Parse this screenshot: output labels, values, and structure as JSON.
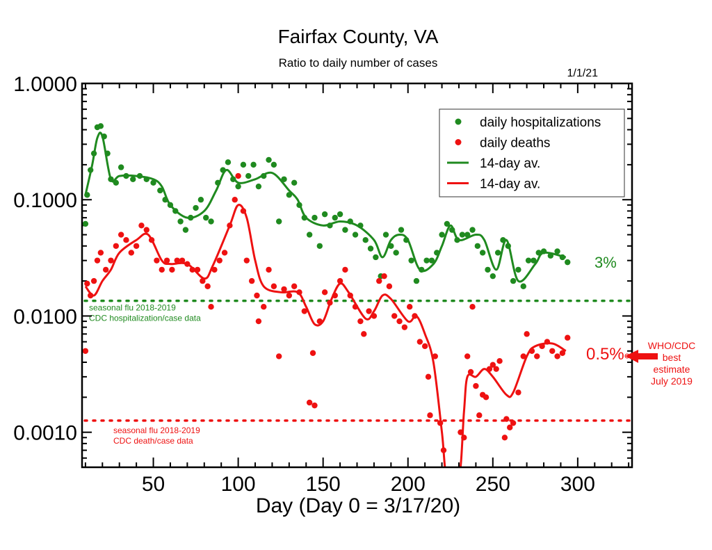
{
  "chart_data": {
    "type": "scatter",
    "title": "Fairfax County, VA",
    "subtitle": "Ratio to daily number of cases",
    "date_label": "1/1/21",
    "xlabel": "Day (Day 0 = 3/17/20)",
    "ylabel": "",
    "xlim": [
      8,
      332
    ],
    "ylim": [
      0.0005,
      1.0
    ],
    "yscale": "log",
    "xticks": [
      50,
      100,
      150,
      200,
      250,
      300
    ],
    "xtick_labels": [
      "50",
      "100",
      "150",
      "200",
      "250",
      "300"
    ],
    "yticks": [
      1.0,
      0.1,
      0.01,
      0.001
    ],
    "ytick_labels": [
      "1.0000",
      "0.1000",
      "0.0100",
      "0.0010"
    ],
    "legend_position": "top-right",
    "colors": {
      "hosp": "#1f8a1f",
      "death": "#ee1111"
    },
    "legend": [
      {
        "label": "daily hospitalizations",
        "kind": "dot",
        "series": "hosp"
      },
      {
        "label": "daily deaths",
        "kind": "dot",
        "series": "death"
      },
      {
        "label": "14-day av.",
        "kind": "line",
        "series": "hosp"
      },
      {
        "label": "14-day av.",
        "kind": "line",
        "series": "death"
      }
    ],
    "series": [
      {
        "name": "daily hospitalizations",
        "key": "hosp",
        "kind": "points",
        "points": [
          [
            10,
            0.062
          ],
          [
            11,
            0.11
          ],
          [
            13,
            0.18
          ],
          [
            15,
            0.25
          ],
          [
            17,
            0.42
          ],
          [
            19,
            0.43
          ],
          [
            21,
            0.35
          ],
          [
            23,
            0.25
          ],
          [
            25,
            0.15
          ],
          [
            28,
            0.14
          ],
          [
            31,
            0.19
          ],
          [
            34,
            0.16
          ],
          [
            38,
            0.15
          ],
          [
            42,
            0.16
          ],
          [
            46,
            0.15
          ],
          [
            50,
            0.14
          ],
          [
            54,
            0.12
          ],
          [
            57,
            0.1
          ],
          [
            60,
            0.09
          ],
          [
            63,
            0.08
          ],
          [
            66,
            0.065
          ],
          [
            69,
            0.055
          ],
          [
            72,
            0.07
          ],
          [
            75,
            0.085
          ],
          [
            78,
            0.1
          ],
          [
            81,
            0.07
          ],
          [
            84,
            0.065
          ],
          [
            88,
            0.14
          ],
          [
            91,
            0.18
          ],
          [
            94,
            0.21
          ],
          [
            97,
            0.15
          ],
          [
            100,
            0.13
          ],
          [
            103,
            0.2
          ],
          [
            106,
            0.16
          ],
          [
            109,
            0.2
          ],
          [
            112,
            0.13
          ],
          [
            115,
            0.16
          ],
          [
            118,
            0.22
          ],
          [
            121,
            0.2
          ],
          [
            124,
            0.065
          ],
          [
            127,
            0.15
          ],
          [
            130,
            0.11
          ],
          [
            133,
            0.14
          ],
          [
            136,
            0.09
          ],
          [
            139,
            0.07
          ],
          [
            142,
            0.05
          ],
          [
            145,
            0.07
          ],
          [
            148,
            0.04
          ],
          [
            151,
            0.075
          ],
          [
            154,
            0.06
          ],
          [
            157,
            0.07
          ],
          [
            160,
            0.075
          ],
          [
            163,
            0.055
          ],
          [
            166,
            0.065
          ],
          [
            169,
            0.05
          ],
          [
            172,
            0.06
          ],
          [
            175,
            0.045
          ],
          [
            178,
            0.038
          ],
          [
            181,
            0.032
          ],
          [
            184,
            0.022
          ],
          [
            187,
            0.05
          ],
          [
            190,
            0.04
          ],
          [
            193,
            0.035
          ],
          [
            196,
            0.055
          ],
          [
            199,
            0.045
          ],
          [
            202,
            0.03
          ],
          [
            205,
            0.02
          ],
          [
            208,
            0.025
          ],
          [
            211,
            0.03
          ],
          [
            214,
            0.03
          ],
          [
            217,
            0.035
          ],
          [
            220,
            0.05
          ],
          [
            223,
            0.062
          ],
          [
            226,
            0.055
          ],
          [
            229,
            0.045
          ],
          [
            232,
            0.05
          ],
          [
            235,
            0.05
          ],
          [
            238,
            0.055
          ],
          [
            241,
            0.04
          ],
          [
            244,
            0.035
          ],
          [
            247,
            0.025
          ],
          [
            250,
            0.022
          ],
          [
            253,
            0.035
          ],
          [
            256,
            0.045
          ],
          [
            259,
            0.04
          ],
          [
            262,
            0.02
          ],
          [
            265,
            0.025
          ],
          [
            268,
            0.018
          ],
          [
            271,
            0.03
          ],
          [
            274,
            0.03
          ],
          [
            277,
            0.035
          ],
          [
            280,
            0.036
          ],
          [
            284,
            0.033
          ],
          [
            288,
            0.036
          ],
          [
            291,
            0.032
          ],
          [
            294,
            0.029
          ]
        ]
      },
      {
        "name": "daily deaths",
        "key": "death",
        "kind": "points",
        "points": [
          [
            10,
            0.005
          ],
          [
            11,
            0.019
          ],
          [
            13,
            0.015
          ],
          [
            15,
            0.02
          ],
          [
            17,
            0.03
          ],
          [
            19,
            0.035
          ],
          [
            22,
            0.025
          ],
          [
            25,
            0.03
          ],
          [
            28,
            0.04
          ],
          [
            31,
            0.05
          ],
          [
            34,
            0.045
          ],
          [
            37,
            0.035
          ],
          [
            40,
            0.04
          ],
          [
            43,
            0.06
          ],
          [
            46,
            0.055
          ],
          [
            49,
            0.045
          ],
          [
            52,
            0.03
          ],
          [
            55,
            0.025
          ],
          [
            58,
            0.03
          ],
          [
            61,
            0.025
          ],
          [
            64,
            0.03
          ],
          [
            67,
            0.03
          ],
          [
            70,
            0.028
          ],
          [
            73,
            0.025
          ],
          [
            76,
            0.025
          ],
          [
            79,
            0.02
          ],
          [
            82,
            0.018
          ],
          [
            84,
            0.012
          ],
          [
            86,
            0.025
          ],
          [
            89,
            0.03
          ],
          [
            92,
            0.035
          ],
          [
            95,
            0.06
          ],
          [
            98,
            0.1
          ],
          [
            100,
            0.16
          ],
          [
            103,
            0.08
          ],
          [
            105,
            0.03
          ],
          [
            108,
            0.02
          ],
          [
            111,
            0.015
          ],
          [
            112,
            0.009
          ],
          [
            115,
            0.012
          ],
          [
            118,
            0.025
          ],
          [
            121,
            0.018
          ],
          [
            124,
            0.0045
          ],
          [
            127,
            0.017
          ],
          [
            130,
            0.015
          ],
          [
            133,
            0.018
          ],
          [
            136,
            0.016
          ],
          [
            139,
            0.011
          ],
          [
            142,
            0.0018
          ],
          [
            144,
            0.0048
          ],
          [
            145,
            0.0017
          ],
          [
            148,
            0.009
          ],
          [
            151,
            0.016
          ],
          [
            154,
            0.013
          ],
          [
            157,
            0.015
          ],
          [
            160,
            0.02
          ],
          [
            163,
            0.025
          ],
          [
            166,
            0.015
          ],
          [
            169,
            0.012
          ],
          [
            172,
            0.009
          ],
          [
            174,
            0.007
          ],
          [
            177,
            0.011
          ],
          [
            180,
            0.01
          ],
          [
            183,
            0.02
          ],
          [
            186,
            0.022
          ],
          [
            189,
            0.018
          ],
          [
            192,
            0.01
          ],
          [
            195,
            0.009
          ],
          [
            198,
            0.008
          ],
          [
            201,
            0.012
          ],
          [
            204,
            0.01
          ],
          [
            207,
            0.006
          ],
          [
            210,
            0.0055
          ],
          [
            212,
            0.003
          ],
          [
            213,
            0.0014
          ],
          [
            216,
            0.0045
          ],
          [
            219,
            0.0012
          ],
          [
            221,
            0.0007
          ],
          [
            231,
            0.001
          ],
          [
            233,
            0.0009
          ],
          [
            235,
            0.0045
          ],
          [
            237,
            0.0033
          ],
          [
            238,
            0.012
          ],
          [
            240,
            0.0025
          ],
          [
            242,
            0.0014
          ],
          [
            244,
            0.0021
          ],
          [
            246,
            0.002
          ],
          [
            248,
            0.0035
          ],
          [
            250,
            0.0038
          ],
          [
            252,
            0.0035
          ],
          [
            254,
            0.0041
          ],
          [
            257,
            0.0009
          ],
          [
            258,
            0.0013
          ],
          [
            260,
            0.0011
          ],
          [
            262,
            0.0012
          ],
          [
            265,
            0.0022
          ],
          [
            268,
            0.0045
          ],
          [
            270,
            0.007
          ],
          [
            273,
            0.005
          ],
          [
            276,
            0.0045
          ],
          [
            279,
            0.0055
          ],
          [
            282,
            0.006
          ],
          [
            285,
            0.005
          ],
          [
            288,
            0.0045
          ],
          [
            291,
            0.0048
          ],
          [
            294,
            0.0065
          ]
        ]
      },
      {
        "name": "14-day av. (hospitalizations)",
        "key": "hosp",
        "kind": "line",
        "points": [
          [
            10,
            0.11
          ],
          [
            14,
            0.2
          ],
          [
            17,
            0.34
          ],
          [
            20,
            0.35
          ],
          [
            25,
            0.15
          ],
          [
            30,
            0.16
          ],
          [
            40,
            0.16
          ],
          [
            50,
            0.15
          ],
          [
            55,
            0.13
          ],
          [
            60,
            0.09
          ],
          [
            70,
            0.07
          ],
          [
            80,
            0.08
          ],
          [
            87,
            0.12
          ],
          [
            93,
            0.18
          ],
          [
            100,
            0.14
          ],
          [
            110,
            0.15
          ],
          [
            120,
            0.17
          ],
          [
            130,
            0.12
          ],
          [
            135,
            0.1
          ],
          [
            140,
            0.07
          ],
          [
            150,
            0.06
          ],
          [
            160,
            0.065
          ],
          [
            170,
            0.06
          ],
          [
            180,
            0.045
          ],
          [
            185,
            0.032
          ],
          [
            190,
            0.045
          ],
          [
            195,
            0.05
          ],
          [
            200,
            0.045
          ],
          [
            207,
            0.025
          ],
          [
            215,
            0.028
          ],
          [
            220,
            0.04
          ],
          [
            225,
            0.06
          ],
          [
            230,
            0.045
          ],
          [
            240,
            0.05
          ],
          [
            245,
            0.045
          ],
          [
            252,
            0.025
          ],
          [
            258,
            0.045
          ],
          [
            265,
            0.02
          ],
          [
            275,
            0.028
          ],
          [
            280,
            0.035
          ],
          [
            293,
            0.032
          ]
        ]
      },
      {
        "name": "14-day av. (deaths)",
        "key": "death",
        "kind": "line",
        "points": [
          [
            10,
            0.018
          ],
          [
            15,
            0.015
          ],
          [
            20,
            0.02
          ],
          [
            25,
            0.025
          ],
          [
            30,
            0.035
          ],
          [
            40,
            0.045
          ],
          [
            47,
            0.05
          ],
          [
            55,
            0.03
          ],
          [
            60,
            0.028
          ],
          [
            70,
            0.028
          ],
          [
            80,
            0.021
          ],
          [
            85,
            0.027
          ],
          [
            95,
            0.06
          ],
          [
            100,
            0.09
          ],
          [
            105,
            0.07
          ],
          [
            110,
            0.03
          ],
          [
            115,
            0.018
          ],
          [
            125,
            0.016
          ],
          [
            135,
            0.016
          ],
          [
            140,
            0.012
          ],
          [
            145,
            0.0085
          ],
          [
            150,
            0.009
          ],
          [
            155,
            0.014
          ],
          [
            160,
            0.019
          ],
          [
            165,
            0.016
          ],
          [
            175,
            0.0095
          ],
          [
            180,
            0.011
          ],
          [
            185,
            0.015
          ],
          [
            190,
            0.014
          ],
          [
            200,
            0.009
          ],
          [
            205,
            0.01
          ],
          [
            210,
            0.007
          ],
          [
            215,
            0.004
          ],
          [
            220,
            0.001
          ],
          [
            223,
            0.0004
          ],
          [
            230,
            0.0004
          ],
          [
            233,
            0.0015
          ],
          [
            235,
            0.003
          ],
          [
            240,
            0.003
          ],
          [
            245,
            0.0035
          ],
          [
            250,
            0.003
          ],
          [
            258,
            0.0021
          ],
          [
            262,
            0.0022
          ],
          [
            270,
            0.0045
          ],
          [
            275,
            0.0055
          ],
          [
            285,
            0.0058
          ],
          [
            293,
            0.005
          ]
        ]
      }
    ],
    "reference_lines": [
      {
        "key": "hosp",
        "value": 0.0135,
        "label1": "seasonal flu 2018-2019",
        "label2": "CDC hospitalization/case data"
      },
      {
        "key": "death",
        "value": 0.00126,
        "label1": "seasonal flu 2018-2019",
        "label2": "CDC death/case data"
      }
    ],
    "annotations": {
      "hosp_pct": "3%",
      "death_pct": "0.5%",
      "who_lines": [
        "WHO/CDC",
        "best",
        "estimate",
        "July 2019"
      ]
    }
  }
}
